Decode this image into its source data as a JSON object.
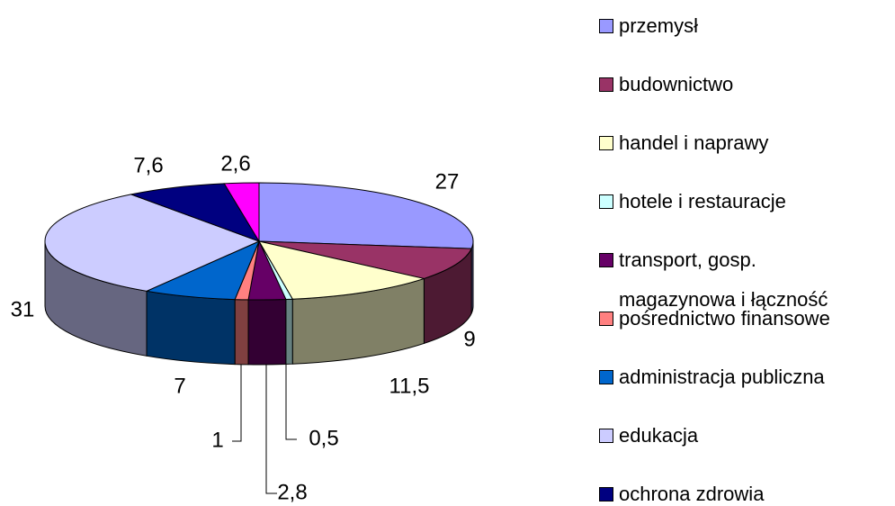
{
  "chart_data": {
    "type": "pie3d",
    "categories": [
      "przemysł",
      "budownictwo",
      "handel i naprawy",
      "hotele i restauracje",
      "transport, gosp. magazynowa i łączność",
      "pośrednictwo finansowe",
      "administracja publiczna",
      "edukacja",
      "ochrona zdrowia",
      null
    ],
    "values": [
      27,
      9,
      11.5,
      0.5,
      2.8,
      1,
      7,
      31,
      7.6,
      2.6
    ],
    "value_labels": [
      "27",
      "9",
      "11,5",
      "0,5",
      "2,8",
      "1",
      "7",
      "31",
      "7,6",
      "2,6"
    ],
    "colors": [
      "#9999ff",
      "#993366",
      "#ffffcc",
      "#ccffff",
      "#660066",
      "#ff8080",
      "#0066cc",
      "#ccccff",
      "#000080",
      "#ff00ff"
    ],
    "legend": "right"
  }
}
